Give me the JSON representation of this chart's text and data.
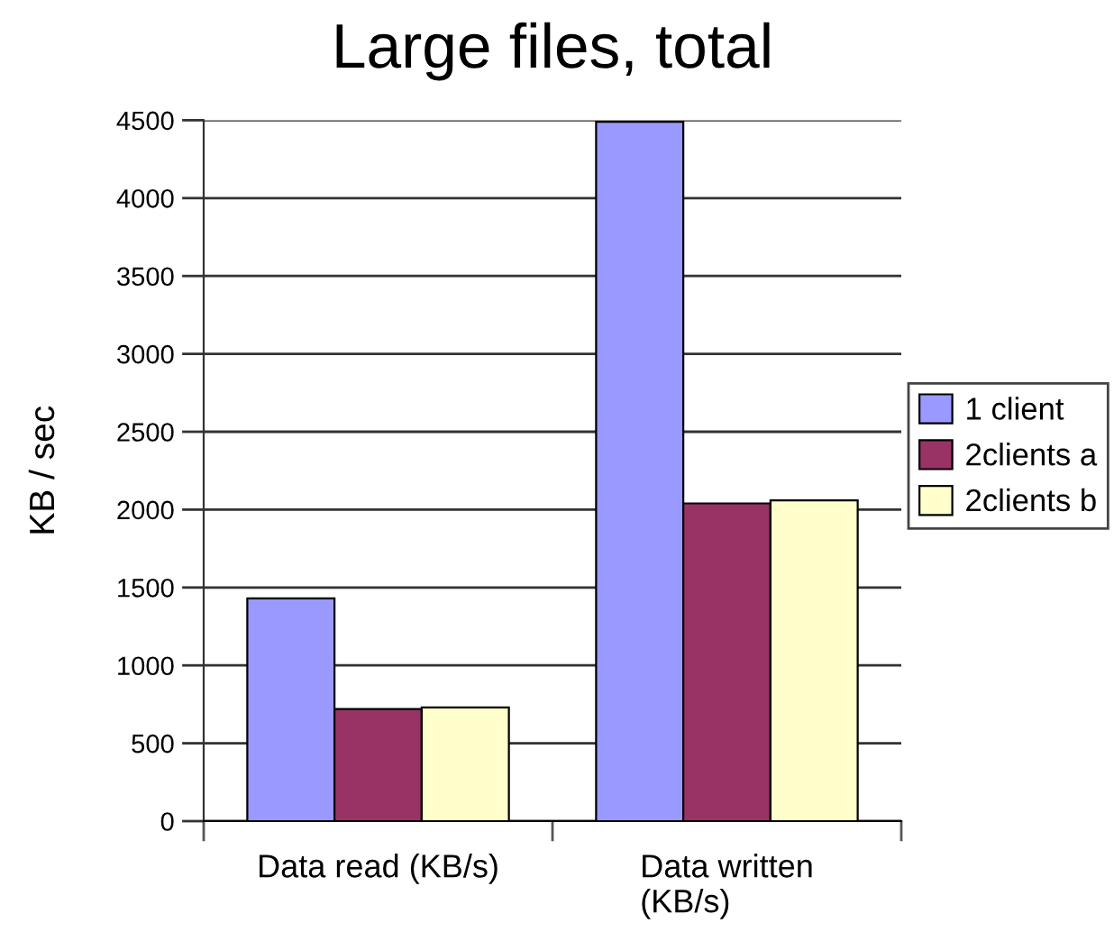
{
  "chart_data": {
    "type": "bar",
    "title": "Large files, total",
    "ylabel": "KB / sec",
    "categories": [
      "Data read (KB/s)",
      "Data written (KB/s)"
    ],
    "series": [
      {
        "name": "1 client",
        "color": "#9999ff",
        "values": [
          1430,
          4490
        ]
      },
      {
        "name": "2clients a",
        "color": "#993366",
        "values": [
          720,
          2040
        ]
      },
      {
        "name": "2clients b",
        "color": "#ffffcc",
        "values": [
          730,
          2060
        ]
      }
    ],
    "ylim": [
      0,
      4500
    ],
    "yticks": [
      0,
      500,
      1000,
      1500,
      2000,
      2500,
      3000,
      3500,
      4000,
      4500
    ],
    "grid": "y",
    "legend": "right"
  }
}
